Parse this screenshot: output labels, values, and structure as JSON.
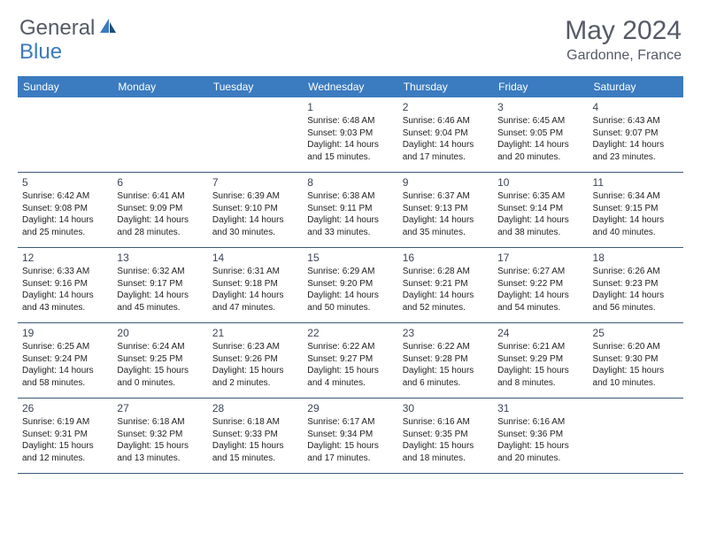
{
  "brand": {
    "part1": "General",
    "part2": "Blue"
  },
  "title": "May 2024",
  "location": "Gardonne, France",
  "header_bg": "#3b7bbf",
  "border_color": "#3b5a7a",
  "weekdays": [
    "Sunday",
    "Monday",
    "Tuesday",
    "Wednesday",
    "Thursday",
    "Friday",
    "Saturday"
  ],
  "weeks": [
    [
      null,
      null,
      null,
      {
        "n": "1",
        "sr": "Sunrise: 6:48 AM",
        "ss": "Sunset: 9:03 PM",
        "d1": "Daylight: 14 hours",
        "d2": "and 15 minutes."
      },
      {
        "n": "2",
        "sr": "Sunrise: 6:46 AM",
        "ss": "Sunset: 9:04 PM",
        "d1": "Daylight: 14 hours",
        "d2": "and 17 minutes."
      },
      {
        "n": "3",
        "sr": "Sunrise: 6:45 AM",
        "ss": "Sunset: 9:05 PM",
        "d1": "Daylight: 14 hours",
        "d2": "and 20 minutes."
      },
      {
        "n": "4",
        "sr": "Sunrise: 6:43 AM",
        "ss": "Sunset: 9:07 PM",
        "d1": "Daylight: 14 hours",
        "d2": "and 23 minutes."
      }
    ],
    [
      {
        "n": "5",
        "sr": "Sunrise: 6:42 AM",
        "ss": "Sunset: 9:08 PM",
        "d1": "Daylight: 14 hours",
        "d2": "and 25 minutes."
      },
      {
        "n": "6",
        "sr": "Sunrise: 6:41 AM",
        "ss": "Sunset: 9:09 PM",
        "d1": "Daylight: 14 hours",
        "d2": "and 28 minutes."
      },
      {
        "n": "7",
        "sr": "Sunrise: 6:39 AM",
        "ss": "Sunset: 9:10 PM",
        "d1": "Daylight: 14 hours",
        "d2": "and 30 minutes."
      },
      {
        "n": "8",
        "sr": "Sunrise: 6:38 AM",
        "ss": "Sunset: 9:11 PM",
        "d1": "Daylight: 14 hours",
        "d2": "and 33 minutes."
      },
      {
        "n": "9",
        "sr": "Sunrise: 6:37 AM",
        "ss": "Sunset: 9:13 PM",
        "d1": "Daylight: 14 hours",
        "d2": "and 35 minutes."
      },
      {
        "n": "10",
        "sr": "Sunrise: 6:35 AM",
        "ss": "Sunset: 9:14 PM",
        "d1": "Daylight: 14 hours",
        "d2": "and 38 minutes."
      },
      {
        "n": "11",
        "sr": "Sunrise: 6:34 AM",
        "ss": "Sunset: 9:15 PM",
        "d1": "Daylight: 14 hours",
        "d2": "and 40 minutes."
      }
    ],
    [
      {
        "n": "12",
        "sr": "Sunrise: 6:33 AM",
        "ss": "Sunset: 9:16 PM",
        "d1": "Daylight: 14 hours",
        "d2": "and 43 minutes."
      },
      {
        "n": "13",
        "sr": "Sunrise: 6:32 AM",
        "ss": "Sunset: 9:17 PM",
        "d1": "Daylight: 14 hours",
        "d2": "and 45 minutes."
      },
      {
        "n": "14",
        "sr": "Sunrise: 6:31 AM",
        "ss": "Sunset: 9:18 PM",
        "d1": "Daylight: 14 hours",
        "d2": "and 47 minutes."
      },
      {
        "n": "15",
        "sr": "Sunrise: 6:29 AM",
        "ss": "Sunset: 9:20 PM",
        "d1": "Daylight: 14 hours",
        "d2": "and 50 minutes."
      },
      {
        "n": "16",
        "sr": "Sunrise: 6:28 AM",
        "ss": "Sunset: 9:21 PM",
        "d1": "Daylight: 14 hours",
        "d2": "and 52 minutes."
      },
      {
        "n": "17",
        "sr": "Sunrise: 6:27 AM",
        "ss": "Sunset: 9:22 PM",
        "d1": "Daylight: 14 hours",
        "d2": "and 54 minutes."
      },
      {
        "n": "18",
        "sr": "Sunrise: 6:26 AM",
        "ss": "Sunset: 9:23 PM",
        "d1": "Daylight: 14 hours",
        "d2": "and 56 minutes."
      }
    ],
    [
      {
        "n": "19",
        "sr": "Sunrise: 6:25 AM",
        "ss": "Sunset: 9:24 PM",
        "d1": "Daylight: 14 hours",
        "d2": "and 58 minutes."
      },
      {
        "n": "20",
        "sr": "Sunrise: 6:24 AM",
        "ss": "Sunset: 9:25 PM",
        "d1": "Daylight: 15 hours",
        "d2": "and 0 minutes."
      },
      {
        "n": "21",
        "sr": "Sunrise: 6:23 AM",
        "ss": "Sunset: 9:26 PM",
        "d1": "Daylight: 15 hours",
        "d2": "and 2 minutes."
      },
      {
        "n": "22",
        "sr": "Sunrise: 6:22 AM",
        "ss": "Sunset: 9:27 PM",
        "d1": "Daylight: 15 hours",
        "d2": "and 4 minutes."
      },
      {
        "n": "23",
        "sr": "Sunrise: 6:22 AM",
        "ss": "Sunset: 9:28 PM",
        "d1": "Daylight: 15 hours",
        "d2": "and 6 minutes."
      },
      {
        "n": "24",
        "sr": "Sunrise: 6:21 AM",
        "ss": "Sunset: 9:29 PM",
        "d1": "Daylight: 15 hours",
        "d2": "and 8 minutes."
      },
      {
        "n": "25",
        "sr": "Sunrise: 6:20 AM",
        "ss": "Sunset: 9:30 PM",
        "d1": "Daylight: 15 hours",
        "d2": "and 10 minutes."
      }
    ],
    [
      {
        "n": "26",
        "sr": "Sunrise: 6:19 AM",
        "ss": "Sunset: 9:31 PM",
        "d1": "Daylight: 15 hours",
        "d2": "and 12 minutes."
      },
      {
        "n": "27",
        "sr": "Sunrise: 6:18 AM",
        "ss": "Sunset: 9:32 PM",
        "d1": "Daylight: 15 hours",
        "d2": "and 13 minutes."
      },
      {
        "n": "28",
        "sr": "Sunrise: 6:18 AM",
        "ss": "Sunset: 9:33 PM",
        "d1": "Daylight: 15 hours",
        "d2": "and 15 minutes."
      },
      {
        "n": "29",
        "sr": "Sunrise: 6:17 AM",
        "ss": "Sunset: 9:34 PM",
        "d1": "Daylight: 15 hours",
        "d2": "and 17 minutes."
      },
      {
        "n": "30",
        "sr": "Sunrise: 6:16 AM",
        "ss": "Sunset: 9:35 PM",
        "d1": "Daylight: 15 hours",
        "d2": "and 18 minutes."
      },
      {
        "n": "31",
        "sr": "Sunrise: 6:16 AM",
        "ss": "Sunset: 9:36 PM",
        "d1": "Daylight: 15 hours",
        "d2": "and 20 minutes."
      },
      null
    ]
  ]
}
